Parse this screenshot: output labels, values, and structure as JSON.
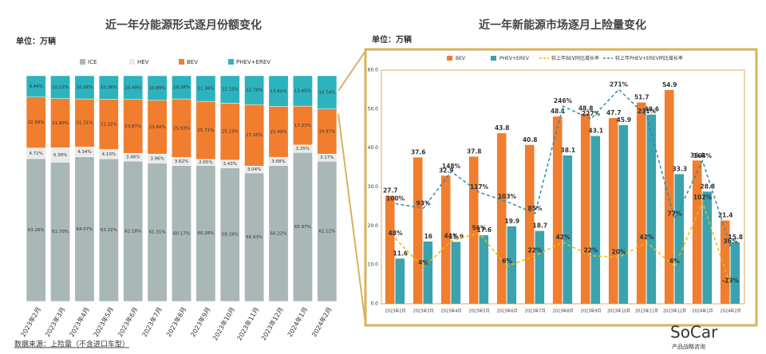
{
  "chart_data": [
    {
      "type": "bar",
      "stacked": true,
      "title": "近一年分能源形式逐月份额变化",
      "unit": "单位：万辆",
      "categories": [
        "2023年2月",
        "2023年3月",
        "2023年4月",
        "2023年5月",
        "2023年6月",
        "2023年7月",
        "2023年8月",
        "2023年9月",
        "2023年10月",
        "2023年11月",
        "2023年12月",
        "2024年1月",
        "2024年2月"
      ],
      "ylim": [
        0,
        100
      ],
      "series": [
        {
          "name": "ICE",
          "color": "#a9b8b6",
          "values": [
            63.26,
            61.7,
            64.07,
            63.22,
            62.18,
            61.31,
            60.17,
            60.28,
            59.19,
            56.93,
            60.22,
            65.97,
            62.12
          ],
          "value_labels": [
            "63.26%",
            "61.70%",
            "64.07%",
            "63.22%",
            "62.18%",
            "61.31%",
            "60.17%",
            "60.28%",
            "59.19%",
            "56.93%",
            "60.22%",
            "65.97%",
            "62.12%"
          ]
        },
        {
          "name": "HEV",
          "color": "#e9eaea",
          "values": [
            4.72,
            6.38,
            4.34,
            4.1,
            3.46,
            3.96,
            3.62,
            2.65,
            3.43,
            3.04,
            3.68,
            3.35,
            3.17
          ],
          "value_labels": [
            "4.72%",
            "6.38%",
            "4.34%",
            "4.10%",
            "3.46%",
            "3.96%",
            "3.62%",
            "2.65%",
            "3.43%",
            "3.04%",
            "3.68%",
            "3.35%",
            "3.17%"
          ]
        },
        {
          "name": "BEV",
          "color": "#f07e2e",
          "values": [
            22.58,
            21.8,
            21.31,
            22.32,
            23.87,
            23.84,
            25.93,
            25.71,
            25.23,
            27.25,
            22.49,
            17.23,
            19.97
          ],
          "value_labels": [
            "22.58%",
            "21.80%",
            "21.31%",
            "22.32%",
            "23.87%",
            "23.84%",
            "25.93%",
            "25.71%",
            "25.23%",
            "27.25%",
            "22.49%",
            "17.23%",
            "19.97%"
          ]
        },
        {
          "name": "PHEV+EREV",
          "color": "#2db3bd",
          "values": [
            9.44,
            10.12,
            10.28,
            10.36,
            10.49,
            10.89,
            10.28,
            11.36,
            12.15,
            12.78,
            13.61,
            13.45,
            14.74
          ],
          "value_labels": [
            "9.44%",
            "10.12%",
            "10.28%",
            "10.36%",
            "10.49%",
            "10.89%",
            "10.28%",
            "11.36%",
            "12.15%",
            "12.78%",
            "13.61%",
            "13.45%",
            "14.74%"
          ]
        }
      ]
    },
    {
      "type": "combo",
      "title": "近一年新能源市场逐月上险量变化",
      "unit": "单位：万辆",
      "categories": [
        "2023年2月",
        "2023年3月",
        "2023年4月",
        "2023年5月",
        "2023年6月",
        "2023年7月",
        "2023年8月",
        "2023年9月",
        "2023年10月",
        "2023年11月",
        "2023年12月",
        "2024年1月",
        "2024年2月"
      ],
      "ylim": [
        0,
        60
      ],
      "yticks": [
        {
          "value": 0,
          "label": "0.0"
        },
        {
          "value": 10,
          "label": "10.0"
        },
        {
          "value": 20,
          "label": "20.0"
        },
        {
          "value": 30,
          "label": "30.0"
        },
        {
          "value": 40,
          "label": "40.0"
        },
        {
          "value": 50,
          "label": "50.0"
        },
        {
          "value": 60,
          "label": "60.0"
        }
      ],
      "y2lim": [
        -50,
        300
      ],
      "series": [
        {
          "name": "BEV",
          "type": "bar",
          "color": "#f07e2e",
          "values": [
            27.7,
            37.6,
            32.9,
            37.8,
            43.8,
            40.8,
            48.1,
            48.8,
            47.7,
            51.7,
            54.9,
            36.8,
            21.4
          ]
        },
        {
          "name": "PHEV+EREV",
          "type": "bar",
          "color": "#3aa3ad",
          "values": [
            11.6,
            16,
            15.9,
            17.6,
            19.9,
            18.7,
            38.1,
            43.1,
            45.9,
            48.6,
            33.3,
            28.8,
            15.8
          ]
        },
        {
          "name": "较上年BEV同比增长率",
          "type": "line",
          "axis": "y2",
          "color": "#f2b705",
          "values": [
            48,
            4,
            44,
            56,
            6,
            22,
            42,
            22,
            20,
            42,
            6,
            102,
            -23
          ],
          "value_labels": [
            "48%",
            "4%",
            "44%",
            "56%",
            "6%",
            "22%",
            "42%",
            "22%",
            "20%",
            "42%",
            "6%",
            "102%",
            "-23%"
          ]
        },
        {
          "name": "较上年PHEV+EREV同比增长率",
          "type": "line",
          "axis": "y2",
          "color": "#2a8db5",
          "values": [
            100,
            93,
            148,
            117,
            103,
            85,
            246,
            227,
            271,
            231,
            77,
            164,
            36
          ],
          "value_labels": [
            "100%",
            "93%",
            "148%",
            "117%",
            "103%",
            "85%",
            "246%",
            "227%",
            "271%",
            "231%",
            "77%",
            "164%",
            "36%"
          ]
        }
      ]
    }
  ],
  "footer": {
    "source": "数据来源：上险量（不含进口车型）",
    "brand": "SoCar",
    "brand_sub": "产品战略咨询"
  }
}
